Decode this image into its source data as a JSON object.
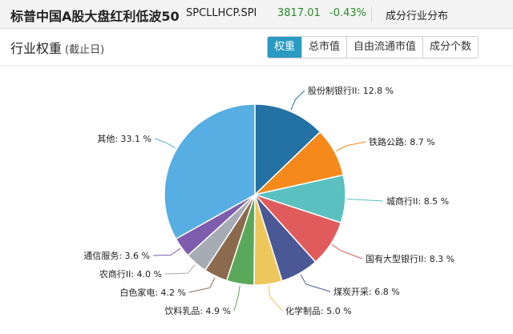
{
  "header": {
    "title": "标普中国A股大盘红利低波50",
    "code": "SPCLLHCP.SPI",
    "price": "3817.01",
    "change": "-0.43%",
    "section": "成分行业分布"
  },
  "panel": {
    "title": "行业权重",
    "subtitle": "(截止日)",
    "tabs": [
      "权重",
      "总市值",
      "自由流通市值",
      "成分个数"
    ],
    "active_tab": "权重"
  },
  "colors": {
    "header_bg": "#f4f4f4",
    "active_tab": "#2a9ac2",
    "up_down": "#2a8a2a"
  },
  "chart_data": {
    "type": "pie",
    "title": "",
    "slices": [
      {
        "label": "股份制银行II",
        "value": 12.8,
        "text": "股份制银行II: 12.8 %",
        "color": "#2471a3"
      },
      {
        "label": "铁路公路",
        "value": 8.7,
        "text": "铁路公路: 8.7 %",
        "color": "#f5891b"
      },
      {
        "label": "城商行II",
        "value": 8.5,
        "text": "城商行II: 8.5 %",
        "color": "#5bc0c0"
      },
      {
        "label": "国有大型银行II",
        "value": 8.3,
        "text": "国有大型银行II: 8.3 %",
        "color": "#e05c5c"
      },
      {
        "label": "煤炭开采",
        "value": 6.8,
        "text": "煤炭开采: 6.8 %",
        "color": "#4a5896"
      },
      {
        "label": "化学制品",
        "value": 5.0,
        "text": "化学制品: 5.0 %",
        "color": "#edc75b"
      },
      {
        "label": "饮料乳品",
        "value": 4.9,
        "text": "饮料乳品: 4.9 %",
        "color": "#5aa85a"
      },
      {
        "label": "白色家电",
        "value": 4.2,
        "text": "白色家电: 4.2 %",
        "color": "#8b6a4e"
      },
      {
        "label": "农商行II",
        "value": 4.0,
        "text": "农商行II: 4.0 %",
        "color": "#a6acb3"
      },
      {
        "label": "通信服务",
        "value": 3.6,
        "text": "通信服务: 3.6 %",
        "color": "#7e5cae"
      },
      {
        "label": "其他",
        "value": 33.1,
        "text": "其他: 33.1 %",
        "color": "#56aee2"
      }
    ]
  }
}
